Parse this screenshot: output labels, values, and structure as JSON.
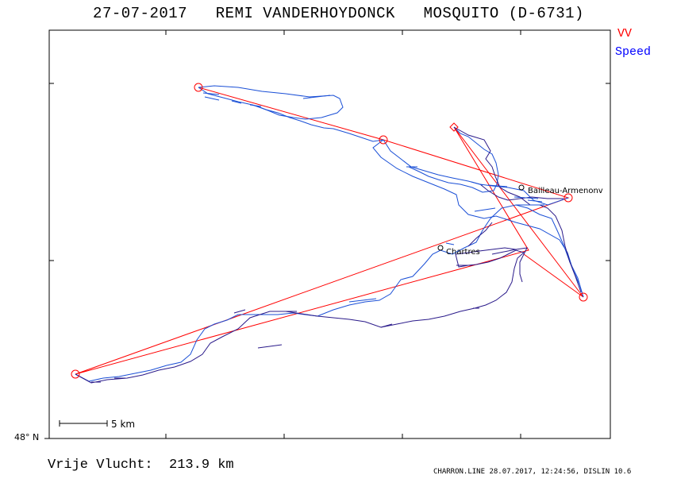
{
  "title": "27-07-2017   REMI VANDERHOYDONCK   MOSQUITO (D-6731)",
  "legend": {
    "vv_label": "VV",
    "speed_label": "Speed",
    "vv_color": "#ff0000",
    "speed_color": "#0000ff"
  },
  "map": {
    "latitude_label": "48° N",
    "scale_label": "5 km",
    "places": [
      {
        "name": "Bailleau-Armenonv"
      },
      {
        "name": "Chartres"
      }
    ]
  },
  "summary": {
    "distance_text": "Vrije Vlucht:  213.9 km"
  },
  "footer": {
    "text": "CHARRON.LINE 28.07.2017, 12:24:56, DISLIN 10.6"
  },
  "track_colors": {
    "track": "#1a4fd6",
    "track_dark": "#2a1a8a",
    "task": "#ff0000"
  }
}
